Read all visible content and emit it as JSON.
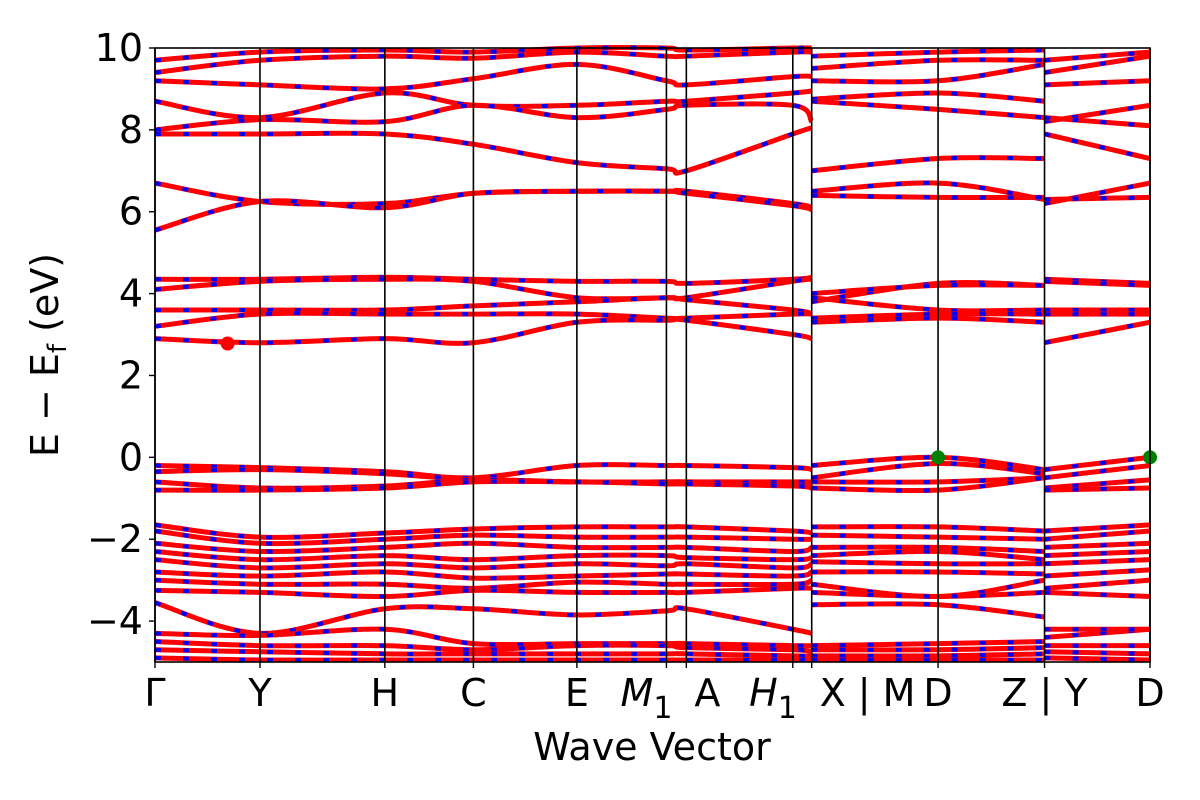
{
  "chart_data": {
    "type": "line",
    "title": "",
    "xlabel": "Wave Vector",
    "ylabel": "E − E",
    "ylabel_sub": "f",
    "ylabel_unit": " (eV)",
    "ylim": [
      -5,
      10
    ],
    "xlim": [
      0,
      100
    ],
    "yticks": [
      10,
      8,
      6,
      4,
      2,
      0,
      -2,
      -4
    ],
    "ytick_labels": [
      "10",
      "8",
      "6",
      "4",
      "2",
      "0",
      "−2",
      "−4"
    ],
    "kpoints": [
      {
        "label": "Γ",
        "x": 0
      },
      {
        "label": "Y",
        "x": 10.55
      },
      {
        "label": "H",
        "x": 23.1
      },
      {
        "label": "C",
        "x": 32.0
      },
      {
        "label": "E",
        "x": 42.4
      },
      {
        "label": "M",
        "sub": "1",
        "italic": true,
        "x": 51.4
      },
      {
        "label": "A",
        "x": 53.4
      },
      {
        "label": "H",
        "sub": "1",
        "italic": true,
        "x": 64.1
      },
      {
        "label": "X | M",
        "x": 66.0
      },
      {
        "label": "D",
        "x": 78.7
      },
      {
        "label": "Z | Y",
        "x": 89.4
      },
      {
        "label": "D",
        "x": 100
      }
    ],
    "band_path_x": [
      0,
      10.55,
      23.1,
      32.0,
      42.4,
      51.4,
      53.4,
      64.1,
      66.0,
      66.0,
      78.7,
      89.4,
      89.4,
      100
    ],
    "segments": [
      [
        0,
        8
      ],
      [
        9,
        11
      ],
      [
        12,
        13
      ]
    ],
    "series_style": {
      "line_color": "#ff0000",
      "dash_color": "#0000ff"
    },
    "bands": [
      [
        9.4,
        9.7,
        9.8,
        9.75,
        9.9,
        9.8,
        9.8,
        9.9,
        9.9,
        9.5,
        9.7,
        9.7,
        9.4,
        9.8
      ],
      [
        9.7,
        9.9,
        9.95,
        9.9,
        10.0,
        10.0,
        9.95,
        10.0,
        10.0,
        9.8,
        9.9,
        9.95,
        9.7,
        9.9
      ],
      [
        9.2,
        9.1,
        9.0,
        9.25,
        9.6,
        9.2,
        9.1,
        9.3,
        9.3,
        9.2,
        9.2,
        9.6,
        9.1,
        9.2
      ],
      [
        8.7,
        8.3,
        8.9,
        8.6,
        8.6,
        8.7,
        8.7,
        8.9,
        8.95,
        8.75,
        8.9,
        8.7,
        8.2,
        8.6
      ],
      [
        8.0,
        8.25,
        8.2,
        8.6,
        8.3,
        8.5,
        8.6,
        8.6,
        8.2,
        8.7,
        8.5,
        8.3,
        8.3,
        8.1
      ],
      [
        7.9,
        7.9,
        7.9,
        7.65,
        7.2,
        7.05,
        7.0,
        7.9,
        8.05,
        7.0,
        7.3,
        7.3,
        7.9,
        7.3
      ],
      [
        6.7,
        6.25,
        6.2,
        6.45,
        6.5,
        6.5,
        6.5,
        6.2,
        6.1,
        6.5,
        6.7,
        6.3,
        6.2,
        6.7
      ],
      [
        5.55,
        6.25,
        6.1,
        6.45,
        6.5,
        6.5,
        6.45,
        6.15,
        6.05,
        6.4,
        6.35,
        6.35,
        6.3,
        6.35
      ],
      [
        4.35,
        4.35,
        4.4,
        4.35,
        4.3,
        4.3,
        4.25,
        4.35,
        4.4,
        3.8,
        4.25,
        4.2,
        4.35,
        4.25
      ],
      [
        4.1,
        4.3,
        4.35,
        4.3,
        3.9,
        3.9,
        3.9,
        4.3,
        4.35,
        4.0,
        4.2,
        4.2,
        4.3,
        4.2
      ],
      [
        3.6,
        3.6,
        3.6,
        3.7,
        3.8,
        3.9,
        3.85,
        3.6,
        3.5,
        3.9,
        3.6,
        3.6,
        3.6,
        3.6
      ],
      [
        3.2,
        3.5,
        3.5,
        3.5,
        3.5,
        3.4,
        3.4,
        3.5,
        3.5,
        3.4,
        3.5,
        3.5,
        3.5,
        3.5
      ],
      [
        2.9,
        2.8,
        2.9,
        2.8,
        3.3,
        3.35,
        3.35,
        3.0,
        2.9,
        3.3,
        3.4,
        3.3,
        2.8,
        3.3
      ],
      [
        -0.2,
        -0.25,
        -0.35,
        -0.5,
        -0.2,
        -0.2,
        -0.2,
        -0.25,
        -0.3,
        -0.2,
        0.0,
        -0.3,
        -0.3,
        0.0
      ],
      [
        -0.35,
        -0.3,
        -0.4,
        -0.55,
        -0.6,
        -0.6,
        -0.6,
        -0.6,
        -0.6,
        -0.5,
        -0.15,
        -0.4,
        -0.5,
        -0.2
      ],
      [
        -0.6,
        -0.75,
        -0.7,
        -0.55,
        -0.6,
        -0.6,
        -0.6,
        -0.65,
        -0.7,
        -0.6,
        -0.6,
        -0.5,
        -0.75,
        -0.55
      ],
      [
        -0.8,
        -0.8,
        -0.75,
        -0.6,
        -0.6,
        -0.65,
        -0.65,
        -0.7,
        -0.75,
        -0.75,
        -0.8,
        -0.5,
        -0.8,
        -0.75
      ],
      [
        -1.65,
        -1.95,
        -1.85,
        -1.75,
        -1.7,
        -1.7,
        -1.7,
        -1.8,
        -1.85,
        -1.7,
        -1.7,
        -1.8,
        -1.8,
        -1.65
      ],
      [
        -1.8,
        -2.1,
        -2.0,
        -1.9,
        -1.95,
        -1.95,
        -1.95,
        -2.0,
        -2.0,
        -1.9,
        -1.95,
        -2.0,
        -2.0,
        -1.8
      ],
      [
        -2.1,
        -2.3,
        -2.2,
        -2.1,
        -2.2,
        -2.2,
        -2.2,
        -2.3,
        -2.2,
        -2.2,
        -2.2,
        -2.3,
        -2.2,
        -2.1
      ],
      [
        -2.3,
        -2.5,
        -2.4,
        -2.5,
        -2.4,
        -2.4,
        -2.45,
        -2.5,
        -2.45,
        -2.4,
        -2.3,
        -2.5,
        -2.4,
        -2.3
      ],
      [
        -2.5,
        -2.7,
        -2.6,
        -2.7,
        -2.6,
        -2.65,
        -2.6,
        -2.7,
        -2.6,
        -2.55,
        -2.6,
        -2.6,
        -2.6,
        -2.5
      ],
      [
        -2.8,
        -2.9,
        -2.8,
        -2.95,
        -2.9,
        -2.85,
        -2.85,
        -2.9,
        -2.8,
        -2.8,
        -2.8,
        -2.85,
        -2.9,
        -2.75
      ],
      [
        -3.0,
        -3.1,
        -3.1,
        -3.2,
        -3.05,
        -3.1,
        -3.1,
        -3.1,
        -3.0,
        -3.1,
        -3.4,
        -3.0,
        -3.2,
        -3.0
      ],
      [
        -3.25,
        -3.3,
        -3.4,
        -3.25,
        -3.3,
        -3.3,
        -3.3,
        -3.2,
        -3.2,
        -3.3,
        -3.4,
        -3.3,
        -3.3,
        -3.4
      ],
      [
        -3.55,
        -4.3,
        -3.7,
        -3.7,
        -3.85,
        -3.75,
        -3.7,
        -4.2,
        -4.3,
        -3.6,
        -3.6,
        -3.9,
        -4.4,
        -4.2
      ],
      [
        -4.3,
        -4.35,
        -4.2,
        -4.55,
        -4.55,
        -4.55,
        -4.55,
        -4.6,
        -4.6,
        -4.6,
        -4.55,
        -4.5,
        -4.2,
        -4.2
      ],
      [
        -4.5,
        -4.6,
        -4.6,
        -4.7,
        -4.6,
        -4.6,
        -4.65,
        -4.7,
        -4.75,
        -4.7,
        -4.7,
        -4.65,
        -4.6,
        -4.6
      ],
      [
        -4.7,
        -4.75,
        -4.8,
        -4.8,
        -4.8,
        -4.8,
        -4.8,
        -4.85,
        -4.85,
        -4.85,
        -4.85,
        -4.8,
        -4.75,
        -4.8
      ],
      [
        -4.9,
        -4.95,
        -4.95,
        -4.95,
        -4.95,
        -4.95,
        -4.95,
        -4.95,
        -4.95,
        -4.95,
        -4.95,
        -4.95,
        -4.9,
        -4.95
      ]
    ],
    "markers": [
      {
        "name": "cbm",
        "x": 7.3,
        "y": 2.78,
        "color": "#ff0000"
      },
      {
        "name": "vbm",
        "x": 78.7,
        "y": 0.0,
        "color": "#008000"
      },
      {
        "name": "vbm",
        "x": 100,
        "y": 0.0,
        "color": "#008000"
      }
    ]
  }
}
